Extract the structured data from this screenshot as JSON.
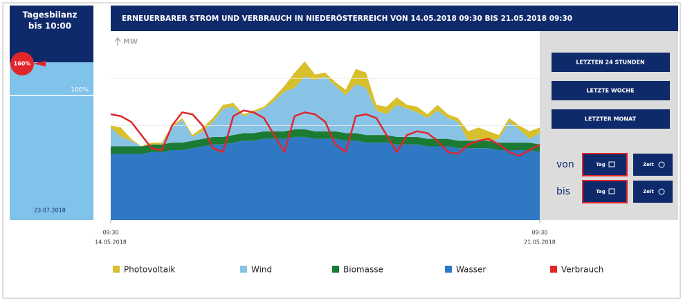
{
  "panel": {
    "title": "Tagesbilanz",
    "subtitle": "bis 10:00",
    "badge": "160%",
    "reference": "100%",
    "date": "23.07.2018"
  },
  "buttons": [
    "LETZTEN 24 STUNDEN",
    "LETZTE WOCHE",
    "LETZTER MONAT"
  ],
  "range": {
    "from_label": "von",
    "to_label": "bis",
    "day": "Tag",
    "time": "Zeit"
  },
  "chart_data": {
    "type": "stacked_area",
    "title": "ERNEUERBARER STROM UND VERBRAUCH IN NIEDERÖSTERREICH VON 14.05.2018 09:30 BIS 21.05.2018 09:30",
    "y_label": "MW",
    "x": [
      0,
      4,
      8,
      12,
      16,
      20,
      24,
      28,
      32,
      36,
      40,
      44,
      48,
      52,
      56,
      60,
      64,
      68,
      72,
      76,
      80,
      84,
      88,
      92,
      96,
      100,
      104,
      108,
      112,
      116,
      120,
      124,
      128,
      132,
      136,
      140,
      144,
      148,
      152,
      156,
      160,
      164,
      168
    ],
    "xlim": [
      0,
      168
    ],
    "xticks": [
      {
        "value": 0,
        "label": "09:30",
        "date": "14.05.2018"
      },
      {
        "value": 168,
        "label": "09:30",
        "date": "21.05.2018"
      }
    ],
    "ylim": [
      0,
      100
    ],
    "yticks": [
      50,
      75
    ],
    "grid": true,
    "series": [
      {
        "name": "Photovoltaik",
        "color": "#d8bf2c",
        "stack": true,
        "values": [
          1,
          5,
          1,
          0,
          1,
          1,
          1,
          1,
          1,
          2,
          2,
          2,
          2,
          1,
          1,
          1,
          2,
          3,
          8,
          8,
          3,
          2,
          2,
          3,
          8,
          8,
          3,
          4,
          4,
          2,
          3,
          2,
          3,
          2,
          2,
          5,
          6,
          5,
          2,
          2,
          2,
          4,
          3
        ]
      },
      {
        "name": "Wind",
        "color": "#88c3e6",
        "stack": true,
        "values": [
          10,
          5,
          3,
          0,
          0,
          0,
          8,
          12,
          2,
          4,
          8,
          15,
          15,
          9,
          11,
          12,
          16,
          21,
          22,
          28,
          27,
          29,
          24,
          20,
          26,
          25,
          13,
          11,
          17,
          15,
          13,
          11,
          15,
          11,
          10,
          0,
          1,
          0,
          2,
          11,
          7,
          2,
          6
        ]
      },
      {
        "name": "Biomasse",
        "color": "#1b7a34",
        "stack": true,
        "values": [
          4,
          4,
          4,
          4,
          4,
          4,
          4,
          4,
          4,
          4,
          4,
          4,
          4,
          4,
          4,
          4,
          4,
          4,
          4,
          4,
          4,
          4,
          4,
          4,
          4,
          4,
          4,
          4,
          4,
          4,
          4,
          4,
          4,
          4,
          4,
          4,
          4,
          4,
          4,
          4,
          4,
          4,
          4
        ]
      },
      {
        "name": "Wasser",
        "color": "#2f78c4",
        "stack": true,
        "values": [
          35,
          35,
          35,
          35,
          36,
          36,
          37,
          37,
          38,
          39,
          40,
          40,
          41,
          42,
          42,
          43,
          43,
          43,
          44,
          44,
          43,
          43,
          43,
          42,
          42,
          41,
          41,
          41,
          40,
          40,
          40,
          39,
          39,
          39,
          38,
          38,
          38,
          38,
          37,
          37,
          37,
          37,
          36
        ]
      },
      {
        "name": "Verbrauch",
        "color": "#e0262b",
        "stack": false,
        "values": [
          56,
          55,
          52,
          45,
          38,
          37,
          50,
          57,
          56,
          50,
          38,
          36,
          55,
          58,
          57,
          54,
          45,
          36,
          55,
          57,
          56,
          52,
          40,
          36,
          55,
          56,
          54,
          45,
          36,
          45,
          47,
          46,
          42,
          36,
          35,
          40,
          42,
          43,
          40,
          36,
          34,
          37,
          40
        ]
      }
    ]
  }
}
